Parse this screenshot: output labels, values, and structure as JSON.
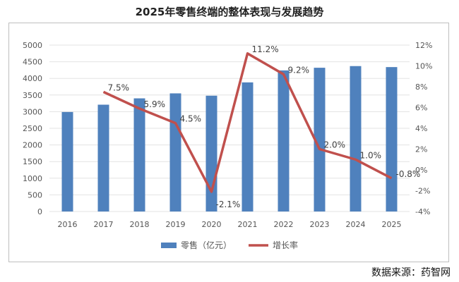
{
  "title": "2025年零售终端的整体表现与发展趋势",
  "source": "数据来源：药智网",
  "chart_data": {
    "type": "bar+line",
    "categories": [
      "2016",
      "2017",
      "2018",
      "2019",
      "2020",
      "2021",
      "2022",
      "2023",
      "2024",
      "2025"
    ],
    "series": [
      {
        "name": "零售（亿元）",
        "type": "bar",
        "axis": "left",
        "color": "#4f81bd",
        "values": [
          2990,
          3210,
          3400,
          3550,
          3480,
          3880,
          4240,
          4320,
          4370,
          4340
        ]
      },
      {
        "name": "增长率",
        "type": "line",
        "axis": "right",
        "color": "#c0504d",
        "values": [
          null,
          7.5,
          5.9,
          4.5,
          -2.1,
          11.2,
          9.2,
          2.0,
          1.0,
          -0.8
        ],
        "labels": [
          "",
          "7.5%",
          "5.9%",
          "4.5%",
          "-2.1%",
          "11.2%",
          "9.2%",
          "2.0%",
          "1.0%",
          "-0.8%"
        ]
      }
    ],
    "ylim": [
      0,
      5000
    ],
    "yticks": [
      "0",
      "500",
      "1000",
      "1500",
      "2000",
      "2500",
      "3000",
      "3500",
      "4000",
      "4500",
      "5000"
    ],
    "y2lim": [
      -4,
      12
    ],
    "y2ticks": [
      "-4%",
      "-2%",
      "0%",
      "2%",
      "4%",
      "6%",
      "8%",
      "10%",
      "12%"
    ],
    "grid": true,
    "legend": "bottom"
  }
}
